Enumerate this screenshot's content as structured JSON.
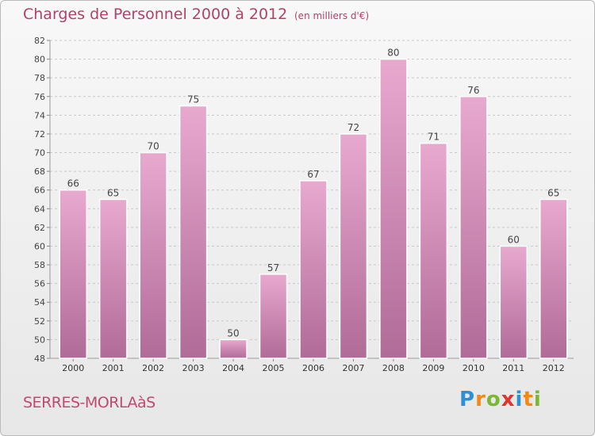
{
  "header": {
    "title": "Charges de Personnel 2000 à 2012",
    "subtitle": "(en milliers d'€)"
  },
  "footer": {
    "commune": "SERRES-MORLAàS",
    "logo_letters": [
      "P",
      "r",
      "o",
      "x",
      "i",
      "t",
      "i"
    ],
    "logo_colors": [
      "#2f8fd5",
      "#f08a17",
      "#7ab833",
      "#e0342c",
      "#2f8fd5",
      "#f08a17",
      "#7ab833"
    ]
  },
  "colors": {
    "title": "#b0426a",
    "bar_light": "#e4a3c9",
    "bar_dark": "#b46f9a",
    "grid": "#c4c4c4",
    "axis": "#999999"
  },
  "chart_data": {
    "type": "bar",
    "title": "Charges de Personnel 2000 à 2012",
    "subtitle": "(en milliers d'€)",
    "categories": [
      "2000",
      "2001",
      "2002",
      "2003",
      "2004",
      "2005",
      "2006",
      "2007",
      "2008",
      "2009",
      "2010",
      "2011",
      "2012"
    ],
    "values": [
      66,
      65,
      70,
      75,
      50,
      57,
      67,
      72,
      80,
      71,
      76,
      60,
      65
    ],
    "ylim": [
      48,
      82
    ],
    "yticks": [
      48,
      50,
      52,
      54,
      56,
      58,
      60,
      62,
      64,
      66,
      68,
      70,
      72,
      74,
      76,
      78,
      80,
      82
    ],
    "grid": true,
    "data_labels": true
  }
}
